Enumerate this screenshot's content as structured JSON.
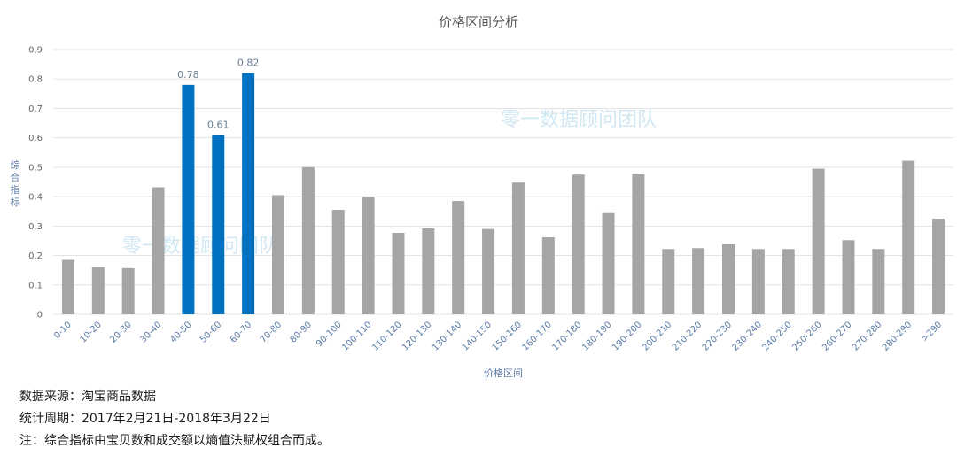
{
  "chart_data": {
    "type": "bar",
    "title": "价格区间分析",
    "xlabel": "价格区间",
    "ylabel": "综合指标",
    "ylim": [
      0,
      0.9
    ],
    "yticks": [
      "0",
      "0.1",
      "0.2",
      "0.3",
      "0.4",
      "0.5",
      "0.6",
      "0.7",
      "0.8",
      "0.9"
    ],
    "grid": true,
    "categories": [
      "0-10",
      "10-20",
      "20-30",
      "30-40",
      "40-50",
      "50-60",
      "60-70",
      "70-80",
      "80-90",
      "90-100",
      "100-110",
      "110-120",
      "120-130",
      "130-140",
      "140-150",
      "150-160",
      "160-170",
      "170-180",
      "180-190",
      "190-200",
      "200-210",
      "210-220",
      "220-230",
      "230-240",
      "240-250",
      "250-260",
      "260-270",
      "270-280",
      "280-290",
      ">290"
    ],
    "values": [
      0.185,
      0.16,
      0.157,
      0.432,
      0.78,
      0.61,
      0.82,
      0.405,
      0.5,
      0.355,
      0.4,
      0.277,
      0.292,
      0.385,
      0.29,
      0.448,
      0.262,
      0.475,
      0.347,
      0.478,
      0.222,
      0.225,
      0.238,
      0.222,
      0.222,
      0.495,
      0.252,
      0.222,
      0.522,
      0.325
    ],
    "highlight_indices": [
      4,
      5,
      6
    ],
    "data_labels": [
      {
        "index": 4,
        "text": "0.78"
      },
      {
        "index": 5,
        "text": "0.61"
      },
      {
        "index": 6,
        "text": "0.82"
      }
    ],
    "colors": {
      "default": "#a5a5a5",
      "highlight": "#0070c0",
      "grid": "#e3e3e3"
    },
    "watermark_text": "零一数据顾问团队"
  },
  "notes": {
    "source": "数据来源：淘宝商品数据",
    "period": "统计周期：2017年2月21日-2018年3月22日",
    "note": "注：综合指标由宝贝数和成交额以熵值法赋权组合而成。"
  }
}
